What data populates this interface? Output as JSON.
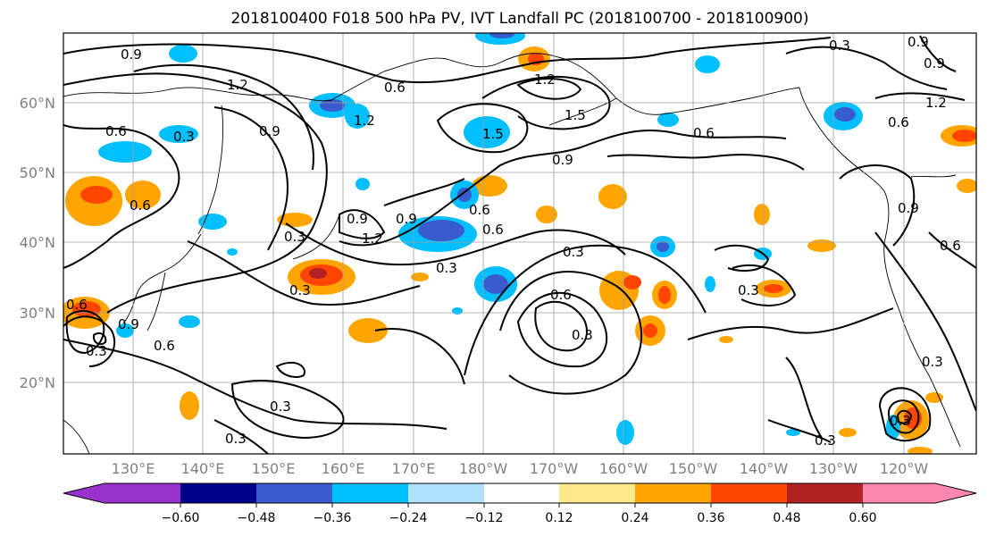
{
  "title": "2018100400 F018 500 hPa PV, IVT Landfall PC (2018100700 - 2018100900)",
  "lat_labels": [
    "60°N",
    "50°N",
    "40°N",
    "30°N",
    "20°N"
  ],
  "lon_labels": [
    "130°E",
    "140°E",
    "150°E",
    "160°E",
    "170°E",
    "180°W",
    "170°W",
    "160°W",
    "150°W",
    "140°W",
    "130°W",
    "120°W"
  ],
  "colorbar": {
    "ticks": [
      "−0.60",
      "−0.48",
      "−0.36",
      "−0.24",
      "−0.12",
      "0.12",
      "0.24",
      "0.36",
      "0.48",
      "0.60"
    ],
    "colors": [
      "#9932cc",
      "#00008b",
      "#3a5bd0",
      "#00bfff",
      "#b0e2ff",
      "#ffffff",
      "#ffe98a",
      "#ffa500",
      "#ff4500",
      "#b22222",
      "#ff88b0"
    ]
  },
  "contour_labels": [
    "0.9",
    "1.2",
    "0.6",
    "0.3",
    "0.9",
    "0.6",
    "1.2",
    "0.6",
    "0.9",
    "1.5",
    "1.2",
    "1.5",
    "0.9",
    "0.3",
    "0.6",
    "1.2",
    "0.9",
    "0.6",
    "0.3",
    "0.3",
    "0.6",
    "0.3",
    "0.3",
    "0.6",
    "0.9",
    "0.3",
    "0.3",
    "0.3",
    "0.6",
    "0.3",
    "0.6",
    "0.9",
    "0.3",
    "0.6",
    "0.3",
    "0.3",
    "0.9",
    "0.9",
    "1.2",
    "0.6",
    "0.3"
  ]
}
